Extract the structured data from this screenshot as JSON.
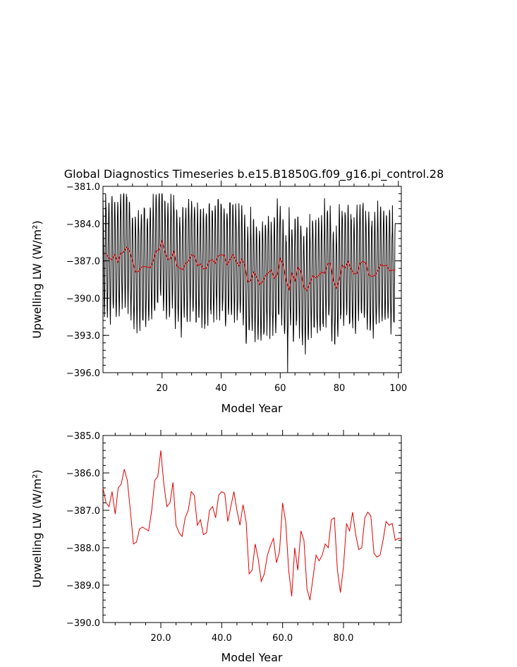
{
  "title": "Global Diagnostics Timeseries b.e15.B1850G.f09_g16.pi_control.28",
  "colors": {
    "monthly": "#000000",
    "annual": "#e00000",
    "axis": "#000000"
  },
  "chart_data": [
    {
      "type": "line",
      "name": "top-panel",
      "xlabel": "Model Year",
      "ylabel": "Upwelling LW (W/m²)",
      "xlim": [
        0,
        101
      ],
      "ylim": [
        -396.0,
        -381.0
      ],
      "x_ticks": [
        20,
        40,
        60,
        80,
        100
      ],
      "x_tick_labels": [
        "20",
        "40",
        "60",
        "80",
        "100"
      ],
      "y_ticks": [
        -396.0,
        -393.0,
        -390.0,
        -387.0,
        -384.0,
        -381.0
      ],
      "y_tick_labels": [
        "−396.0",
        "−393.0",
        "−390.0",
        "−387.0",
        "−384.0",
        "−381.0"
      ],
      "series": [
        {
          "name": "monthly",
          "color": "#000000",
          "description": "seasonal cycle between about -392.5 and -383.5",
          "seasonal_peak": -383.5,
          "seasonal_trough": -392.0,
          "lowest": -396.0,
          "highest": -381.6
        },
        {
          "name": "annual",
          "color": "#e00000",
          "x": [
            1,
            2,
            3,
            4,
            5,
            6,
            7,
            8,
            9,
            10,
            11,
            12,
            13,
            14,
            15,
            16,
            17,
            18,
            19,
            20,
            21,
            22,
            23,
            24,
            25,
            26,
            27,
            28,
            29,
            30,
            31,
            32,
            33,
            34,
            35,
            36,
            37,
            38,
            39,
            40,
            41,
            42,
            43,
            44,
            45,
            46,
            47,
            48,
            49,
            50,
            51,
            52,
            53,
            54,
            55,
            56,
            57,
            58,
            59,
            60,
            61,
            62,
            63,
            64,
            65,
            66,
            67,
            68,
            69,
            70,
            71,
            72,
            73,
            74,
            75,
            76,
            77,
            78,
            79,
            80,
            81,
            82,
            83,
            84,
            85,
            86,
            87,
            88,
            89,
            90,
            91,
            92,
            93,
            94,
            95,
            96,
            97,
            98,
            99
          ],
          "values": [
            -386.4,
            -386.8,
            -386.9,
            -386.5,
            -387.1,
            -386.4,
            -386.3,
            -385.9,
            -386.2,
            -387.0,
            -387.9,
            -387.85,
            -387.5,
            -387.45,
            -387.5,
            -387.55,
            -387.0,
            -386.2,
            -386.1,
            -385.4,
            -386.3,
            -386.9,
            -386.8,
            -386.25,
            -387.4,
            -387.6,
            -387.7,
            -387.2,
            -387.0,
            -386.5,
            -386.6,
            -387.4,
            -387.25,
            -387.65,
            -387.6,
            -387.0,
            -386.9,
            -387.2,
            -386.6,
            -386.5,
            -386.55,
            -387.3,
            -386.9,
            -386.5,
            -387.0,
            -387.4,
            -386.85,
            -387.3,
            -388.7,
            -388.6,
            -387.9,
            -388.3,
            -388.9,
            -388.7,
            -388.2,
            -387.95,
            -387.75,
            -388.4,
            -388.1,
            -386.8,
            -387.3,
            -388.6,
            -389.3,
            -388.0,
            -388.6,
            -387.55,
            -387.8,
            -389.1,
            -389.4,
            -388.8,
            -388.2,
            -388.35,
            -388.2,
            -387.9,
            -388.0,
            -387.25,
            -387.2,
            -388.6,
            -389.2,
            -388.5,
            -387.35,
            -387.55,
            -387.05,
            -387.65,
            -388.05,
            -388.0,
            -387.2,
            -387.05,
            -387.15,
            -388.15,
            -388.25,
            -388.2,
            -387.8,
            -387.3,
            -387.4,
            -387.35,
            -387.8,
            -387.75,
            -387.75
          ]
        }
      ]
    },
    {
      "type": "line",
      "name": "bottom-panel",
      "xlabel": "Model Year",
      "ylabel": "Upwelling LW (W/m²)",
      "xlim": [
        1,
        99
      ],
      "ylim": [
        -390.0,
        -385.0
      ],
      "x_ticks": [
        20,
        40,
        60,
        80
      ],
      "x_tick_labels": [
        "20.0",
        "40.0",
        "60.0",
        "80.0"
      ],
      "y_ticks": [
        -390.0,
        -389.0,
        -388.0,
        -387.0,
        -386.0,
        -385.0
      ],
      "y_tick_labels": [
        "−390.0",
        "−389.0",
        "−388.0",
        "−387.0",
        "−386.0",
        "−385.0"
      ],
      "series": [
        {
          "name": "annual",
          "color": "#e00000",
          "source": "same as top-panel annual series"
        }
      ]
    }
  ]
}
